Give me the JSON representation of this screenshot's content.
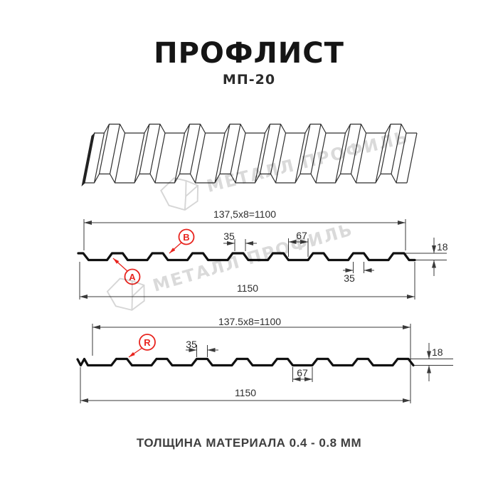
{
  "header": {
    "title": "ПРОФЛИСТ",
    "subtitle": "МП-20"
  },
  "footer": {
    "note": "ТОЛЩИНА МАТЕРИАЛА 0.4 - 0.8 ММ"
  },
  "watermark": {
    "text": "МЕТАЛЛ ПРОФИЛЬ"
  },
  "section1": {
    "dim_top": "137,5x8=1100",
    "dim_rib_top": "35",
    "dim_valley": "67",
    "dim_height": "18",
    "dim_rib_bottom": "35",
    "dim_width": "1150",
    "label_a": "A",
    "label_b": "B"
  },
  "section2": {
    "dim_top": "137.5x8=1100",
    "dim_rib_top": "35",
    "dim_height": "18",
    "dim_valley": "67",
    "dim_width": "1150",
    "label_r": "R"
  },
  "colors": {
    "accent_red": "#e8241e",
    "line_black": "#111111",
    "dim_gray": "#3a3a3a",
    "watermark_gray": "#d9d9d9"
  }
}
